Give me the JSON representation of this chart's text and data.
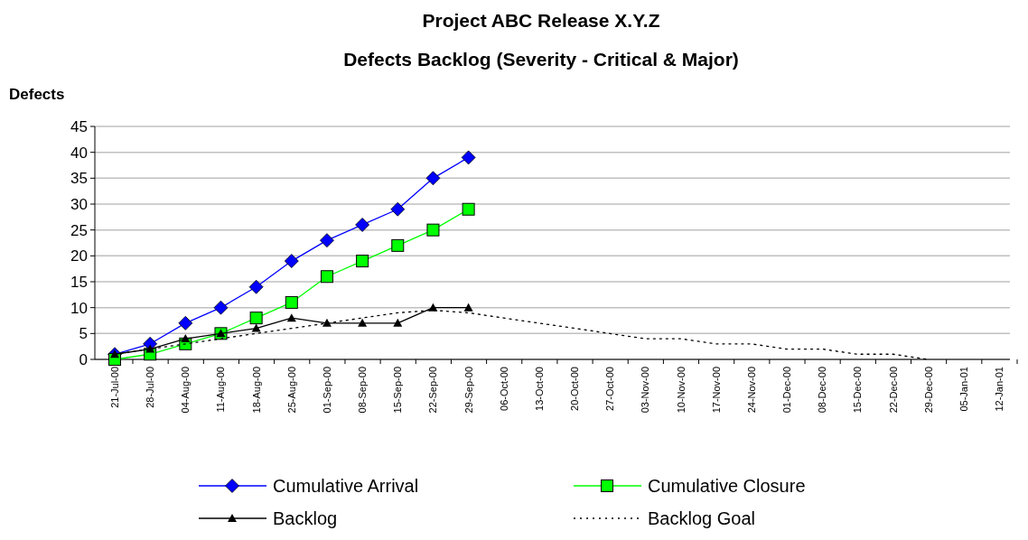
{
  "chart_data": {
    "type": "line",
    "title": "Project ABC  Release X.Y.Z",
    "subtitle": "Defects Backlog (Severity - Critical & Major)",
    "ylabel": "Defects",
    "categories": [
      "21-Jul-00",
      "28-Jul-00",
      "04-Aug-00",
      "11-Aug-00",
      "18-Aug-00",
      "25-Aug-00",
      "01-Sep-00",
      "08-Sep-00",
      "15-Sep-00",
      "22-Sep-00",
      "29-Sep-00",
      "06-Oct-00",
      "13-Oct-00",
      "20-Oct-00",
      "27-Oct-00",
      "03-Nov-00",
      "10-Nov-00",
      "17-Nov-00",
      "24-Nov-00",
      "01-Dec-00",
      "08-Dec-00",
      "15-Dec-00",
      "22-Dec-00",
      "29-Dec-00",
      "05-Jan-01",
      "12-Jan-01"
    ],
    "ylim": [
      0,
      45
    ],
    "yticks": [
      0,
      5,
      10,
      15,
      20,
      25,
      30,
      35,
      40,
      45
    ],
    "grid": "y",
    "legend": "bottom",
    "series": [
      {
        "name": "Cumulative Arrival",
        "color": "#0000ff",
        "marker": "diamond",
        "line_style": "solid",
        "values": [
          1,
          3,
          7,
          10,
          14,
          19,
          23,
          26,
          29,
          35,
          39,
          null,
          null,
          null,
          null,
          null,
          null,
          null,
          null,
          null,
          null,
          null,
          null,
          null,
          null,
          null
        ]
      },
      {
        "name": "Cumulative Closure",
        "color": "#00ff00",
        "marker": "square",
        "line_style": "solid",
        "values": [
          0,
          1,
          3,
          5,
          8,
          11,
          16,
          19,
          22,
          25,
          29,
          null,
          null,
          null,
          null,
          null,
          null,
          null,
          null,
          null,
          null,
          null,
          null,
          null,
          null,
          null
        ]
      },
      {
        "name": "Backlog",
        "color": "#000000",
        "marker": "triangle",
        "line_style": "solid",
        "values": [
          1,
          2,
          4,
          5,
          6,
          8,
          7,
          7,
          7,
          10,
          10,
          null,
          null,
          null,
          null,
          null,
          null,
          null,
          null,
          null,
          null,
          null,
          null,
          null,
          null,
          null
        ]
      },
      {
        "name": "Backlog Goal",
        "color": "#000000",
        "marker": "none",
        "line_style": "dotted",
        "values": [
          1,
          2,
          3,
          4,
          5,
          6,
          7,
          8,
          9,
          9.5,
          9,
          8,
          7,
          6,
          5,
          4,
          4,
          3,
          3,
          2,
          2,
          1,
          1,
          0,
          null,
          null
        ]
      }
    ]
  }
}
